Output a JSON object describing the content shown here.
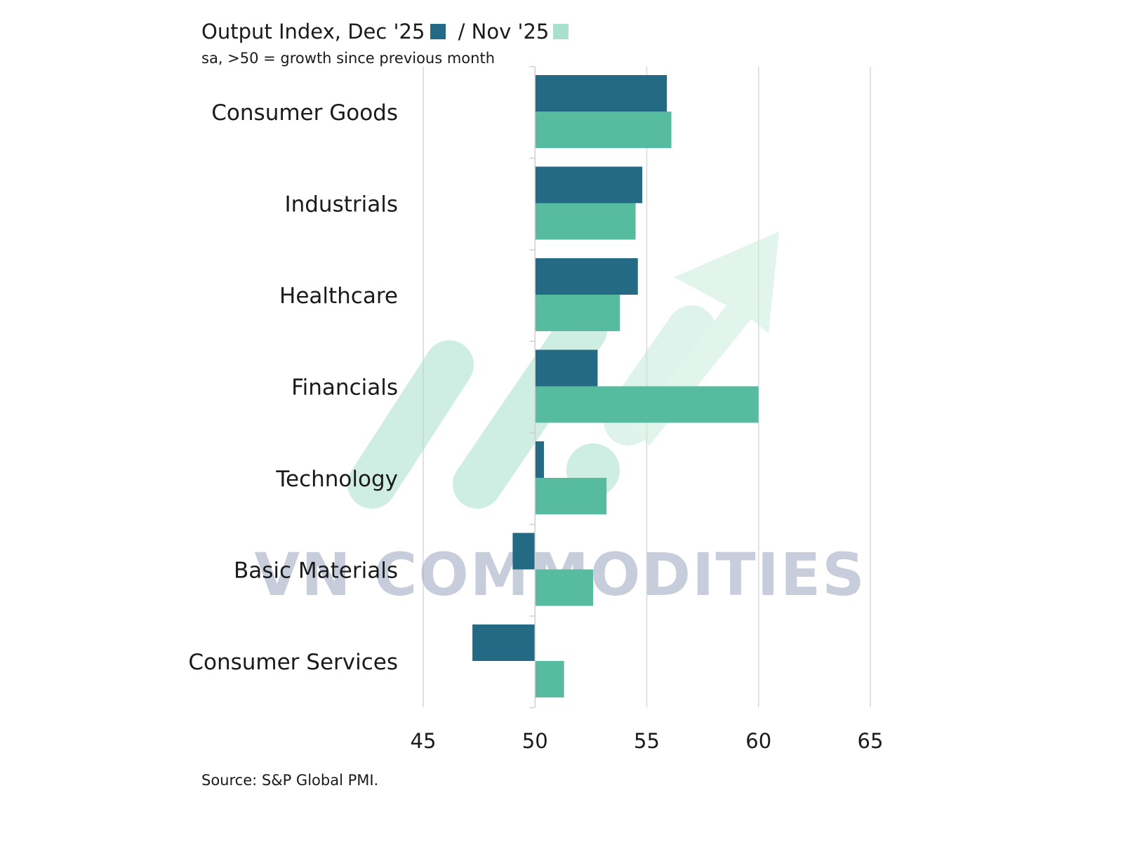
{
  "chart_data": {
    "type": "bar",
    "orientation": "horizontal",
    "title": "Output Index, Dec '25",
    "title_separator": " / ",
    "subtitle": "sa, >50 = growth since previous month",
    "source": "Source: S&P Global PMI.",
    "categories": [
      "Consumer Goods",
      "Industrials",
      "Healthcare",
      "Financials",
      "Technology",
      "Basic Materials",
      "Consumer Services"
    ],
    "series": [
      {
        "name": "Dec '25",
        "color": "#256a85",
        "values": [
          55.9,
          54.8,
          54.6,
          52.8,
          50.4,
          49.0,
          47.2
        ]
      },
      {
        "name": "Nov '25",
        "color": "#57bc9f",
        "values": [
          56.1,
          54.5,
          53.8,
          60.0,
          53.2,
          52.6,
          51.3
        ]
      }
    ],
    "legend_colors": [
      "#256a85",
      "#a8e0cd"
    ],
    "baseline": 50,
    "xlim": [
      45,
      65
    ],
    "xticks": [
      45,
      50,
      55,
      60,
      65
    ],
    "grid": true,
    "watermark": "VN COMMODITIES"
  }
}
